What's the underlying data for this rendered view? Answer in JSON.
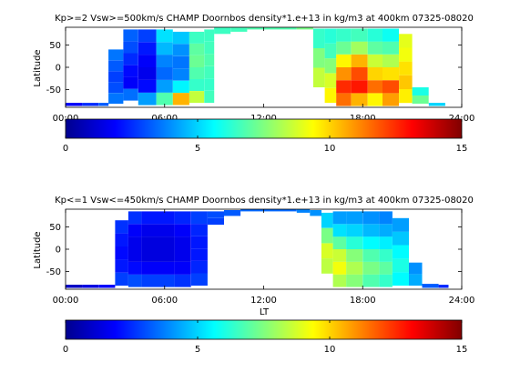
{
  "figure": {
    "panels": [
      {
        "title": "Kp>=2 Vsw>=500km/s CHAMP Doornbos density*1.e+13 in kg/m3 at 400km 07325-08020",
        "ylabel": "Latitude",
        "xlabel": ""
      },
      {
        "title": "Kp<=1 Vsw<=450km/s CHAMP Doornbos density*1.e+13 in kg/m3 at 400km 07325-08020",
        "ylabel": "Latitude",
        "xlabel": "LT"
      }
    ]
  },
  "chart_data": [
    {
      "type": "heatmap",
      "title": "Kp>=2 Vsw>=500km/s CHAMP Doornbos density*1.e+13 in kg/m3 at 400km 07325-08020",
      "xlabel": "",
      "ylabel": "Latitude",
      "xlim": [
        0,
        24
      ],
      "ylim": [
        -90,
        90
      ],
      "xticklabels": [
        "00:00",
        "06:00",
        "12:00",
        "18:00",
        "24:00"
      ],
      "xticks": [
        0,
        6,
        12,
        18,
        24
      ],
      "yticks": [
        -50,
        0,
        50
      ],
      "colorbar": {
        "range": [
          0,
          15
        ],
        "ticks": [
          0,
          5,
          10,
          15
        ],
        "colormap": "jet"
      },
      "columns": [
        {
          "lt": [
            0.0,
            1.0
          ],
          "lat": [
            -87,
            -80
          ],
          "values": [
            1.8
          ]
        },
        {
          "lt": [
            1.0,
            2.0
          ],
          "lat": [
            -87,
            -80
          ],
          "values": [
            2.5
          ]
        },
        {
          "lt": [
            2.0,
            2.6
          ],
          "lat": [
            -87,
            -80
          ],
          "values": [
            3.2
          ]
        },
        {
          "lt": [
            2.6,
            3.5
          ],
          "lat": [
            -82,
            40
          ],
          "values": [
            3.6,
            3.0,
            2.8,
            3.2,
            3.6
          ]
        },
        {
          "lt": [
            3.5,
            4.4
          ],
          "lat": [
            -75,
            85
          ],
          "values": [
            3.5,
            1.8,
            2.0,
            2.5,
            3.0,
            3.3
          ]
        },
        {
          "lt": [
            4.4,
            5.5
          ],
          "lat": [
            -85,
            85
          ],
          "values": [
            4.2,
            2.0,
            1.6,
            1.8,
            2.2,
            2.8
          ]
        },
        {
          "lt": [
            5.5,
            6.5
          ],
          "lat": [
            -85,
            85
          ],
          "values": [
            6.8,
            4.2,
            3.4,
            3.8,
            4.6,
            5.2
          ]
        },
        {
          "lt": [
            6.5,
            7.5
          ],
          "lat": [
            -85,
            80
          ],
          "values": [
            10.5,
            5.5,
            3.8,
            3.6,
            4.0,
            4.8
          ]
        },
        {
          "lt": [
            7.5,
            8.4
          ],
          "lat": [
            -80,
            80
          ],
          "values": [
            8.5,
            6.4,
            6.8,
            7.2,
            7.0,
            6.5
          ]
        },
        {
          "lt": [
            8.4,
            9.0
          ],
          "lat": [
            -80,
            85
          ],
          "values": [
            6.6,
            6.4,
            6.6,
            6.8,
            6.6,
            6.5
          ]
        },
        {
          "lt": [
            9.0,
            10.0
          ],
          "lat": [
            75,
            90
          ],
          "values": [
            6.5
          ]
        },
        {
          "lt": [
            10.0,
            11.0
          ],
          "lat": [
            80,
            90
          ],
          "values": [
            6.6
          ]
        },
        {
          "lt": [
            11.0,
            14.0
          ],
          "lat": [
            85,
            90
          ],
          "values": [
            6.8
          ]
        },
        {
          "lt": [
            14.0,
            15.0
          ],
          "lat": [
            85,
            90
          ],
          "values": [
            7.4
          ]
        },
        {
          "lt": [
            15.0,
            15.7
          ],
          "lat": [
            -45,
            87
          ],
          "values": [
            8.5,
            7.5,
            6.4
          ]
        },
        {
          "lt": [
            15.7,
            16.4
          ],
          "lat": [
            -80,
            87
          ],
          "values": [
            9.5,
            8.8,
            7.6,
            6.6,
            6.2
          ]
        },
        {
          "lt": [
            16.4,
            17.3
          ],
          "lat": [
            -87,
            87
          ],
          "values": [
            11.5,
            12.5,
            11.0,
            9.5,
            7.2,
            6.4
          ]
        },
        {
          "lt": [
            17.3,
            18.3
          ],
          "lat": [
            -87,
            87
          ],
          "values": [
            10.5,
            12.8,
            12.0,
            10.5,
            8.0,
            6.6
          ]
        },
        {
          "lt": [
            18.3,
            19.2
          ],
          "lat": [
            -87,
            87
          ],
          "values": [
            9.5,
            11.5,
            10.0,
            8.6,
            7.0,
            6.2
          ]
        },
        {
          "lt": [
            19.2,
            20.2
          ],
          "lat": [
            -87,
            87
          ],
          "values": [
            10.8,
            12.0,
            9.8,
            8.2,
            6.8,
            5.8
          ]
        },
        {
          "lt": [
            20.2,
            21.0
          ],
          "lat": [
            -80,
            75
          ],
          "values": [
            9.6,
            10.2,
            9.8,
            9.2,
            9.0
          ]
        },
        {
          "lt": [
            21.0,
            22.0
          ],
          "lat": [
            -82,
            -45
          ],
          "values": [
            7.2,
            6.0
          ]
        },
        {
          "lt": [
            22.0,
            23.0
          ],
          "lat": [
            -87,
            -80
          ],
          "values": [
            5.0
          ]
        }
      ]
    },
    {
      "type": "heatmap",
      "title": "Kp<=1 Vsw<=450km/s CHAMP Doornbos density*1.e+13 in kg/m3 at 400km 07325-08020",
      "xlabel": "LT",
      "ylabel": "Latitude",
      "xlim": [
        0,
        24
      ],
      "ylim": [
        -90,
        90
      ],
      "xticklabels": [
        "00:00",
        "06:00",
        "12:00",
        "18:00",
        "24:00"
      ],
      "xticks": [
        0,
        6,
        12,
        18,
        24
      ],
      "yticks": [
        -50,
        0,
        50
      ],
      "colorbar": {
        "range": [
          0,
          15
        ],
        "ticks": [
          0,
          5,
          10,
          15
        ],
        "colormap": "jet"
      },
      "columns": [
        {
          "lt": [
            0.0,
            1.0
          ],
          "lat": [
            -87,
            -80
          ],
          "values": [
            1.0
          ]
        },
        {
          "lt": [
            1.0,
            2.0
          ],
          "lat": [
            -87,
            -80
          ],
          "values": [
            1.4
          ]
        },
        {
          "lt": [
            2.0,
            3.0
          ],
          "lat": [
            -87,
            -80
          ],
          "values": [
            1.8
          ]
        },
        {
          "lt": [
            3.0,
            3.8
          ],
          "lat": [
            -82,
            65
          ],
          "values": [
            2.8,
            2.2,
            2.0,
            2.2,
            2.6
          ]
        },
        {
          "lt": [
            3.8,
            4.6
          ],
          "lat": [
            -85,
            85
          ],
          "values": [
            3.0,
            2.0,
            1.6,
            1.6,
            1.8,
            2.6
          ]
        },
        {
          "lt": [
            4.6,
            5.6
          ],
          "lat": [
            -85,
            85
          ],
          "values": [
            2.8,
            1.8,
            1.4,
            1.4,
            1.6,
            2.2
          ]
        },
        {
          "lt": [
            5.6,
            6.6
          ],
          "lat": [
            -85,
            85
          ],
          "values": [
            2.8,
            1.8,
            1.4,
            1.4,
            1.6,
            2.2
          ]
        },
        {
          "lt": [
            6.6,
            7.6
          ],
          "lat": [
            -85,
            85
          ],
          "values": [
            2.6,
            1.8,
            1.6,
            1.6,
            1.8,
            2.4
          ]
        },
        {
          "lt": [
            7.6,
            8.6
          ],
          "lat": [
            -82,
            85
          ],
          "values": [
            2.8,
            2.4,
            2.2,
            2.2,
            2.4,
            2.8
          ]
        },
        {
          "lt": [
            8.6,
            9.6
          ],
          "lat": [
            55,
            85
          ],
          "values": [
            2.8,
            3.0
          ]
        },
        {
          "lt": [
            9.6,
            10.6
          ],
          "lat": [
            75,
            88
          ],
          "values": [
            3.2
          ]
        },
        {
          "lt": [
            10.6,
            14.0
          ],
          "lat": [
            85,
            90
          ],
          "values": [
            3.4
          ]
        },
        {
          "lt": [
            14.0,
            14.8
          ],
          "lat": [
            82,
            90
          ],
          "values": [
            3.8
          ]
        },
        {
          "lt": [
            14.8,
            15.5
          ],
          "lat": [
            75,
            88
          ],
          "values": [
            4.0
          ]
        },
        {
          "lt": [
            15.5,
            16.2
          ],
          "lat": [
            -55,
            82
          ],
          "values": [
            8.4,
            8.8,
            7.4,
            5.0
          ]
        },
        {
          "lt": [
            16.2,
            17.0
          ],
          "lat": [
            -85,
            85
          ],
          "values": [
            8.2,
            9.2,
            8.6,
            7.0,
            5.2,
            4.2
          ]
        },
        {
          "lt": [
            17.0,
            18.0
          ],
          "lat": [
            -85,
            85
          ],
          "values": [
            7.6,
            8.2,
            7.6,
            6.2,
            5.0,
            4.2
          ]
        },
        {
          "lt": [
            18.0,
            19.0
          ],
          "lat": [
            -85,
            85
          ],
          "values": [
            6.8,
            7.4,
            6.8,
            5.6,
            4.6,
            4.0
          ]
        },
        {
          "lt": [
            19.0,
            19.8
          ],
          "lat": [
            -85,
            85
          ],
          "values": [
            6.4,
            7.0,
            6.4,
            5.4,
            4.4,
            3.8
          ]
        },
        {
          "lt": [
            19.8,
            20.8
          ],
          "lat": [
            -82,
            70
          ],
          "values": [
            5.6,
            6.0,
            5.6,
            4.8,
            4.2
          ]
        },
        {
          "lt": [
            20.8,
            21.6
          ],
          "lat": [
            -82,
            -30
          ],
          "values": [
            4.4,
            4.0
          ]
        },
        {
          "lt": [
            21.6,
            22.6
          ],
          "lat": [
            -87,
            -78
          ],
          "values": [
            3.2
          ]
        },
        {
          "lt": [
            22.6,
            23.2
          ],
          "lat": [
            -87,
            -80
          ],
          "values": [
            2.4
          ]
        }
      ]
    }
  ]
}
